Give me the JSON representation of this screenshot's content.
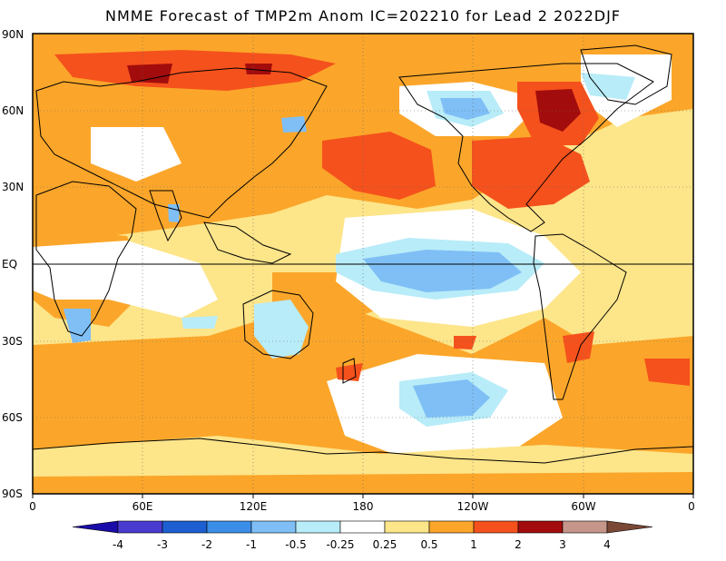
{
  "title": "NMME Forecast of TMP2m Anom IC=202210 for Lead 2 2022DJF",
  "y_labels": [
    "90N",
    "60N",
    "30N",
    "EQ",
    "30S",
    "60S",
    "90S"
  ],
  "x_labels": [
    "0",
    "60E",
    "120E",
    "180",
    "120W",
    "60W",
    "0"
  ],
  "colorbar": {
    "labels": [
      "-4",
      "-3",
      "-2",
      "-1",
      "-0.5",
      "-0.25",
      "0.25",
      "0.5",
      "1",
      "2",
      "3",
      "4"
    ],
    "colors": [
      "#1a0ca8",
      "#4a3bd0",
      "#1d5fd0",
      "#3a8ee8",
      "#7fbff6",
      "#b8ecf8",
      "#ffffff",
      "#fde58a",
      "#fba62a",
      "#f5511c",
      "#a30c0c",
      "#c6968a",
      "#7a4836"
    ]
  },
  "colors": {
    "ocean_base": "#fde58a",
    "frame": "#000000"
  }
}
